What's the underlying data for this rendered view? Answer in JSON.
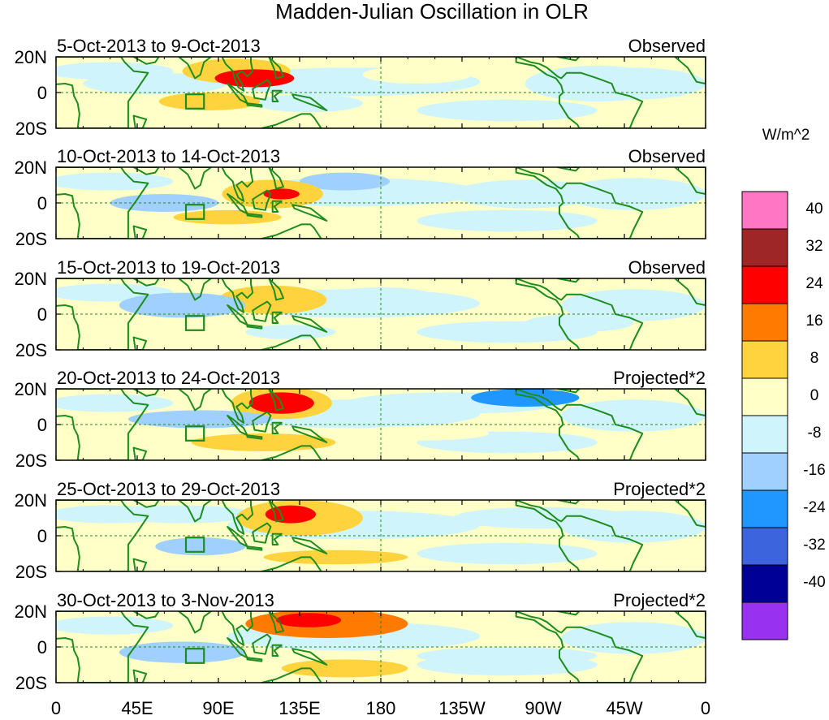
{
  "title": "Madden-Julian Oscillation in OLR",
  "units": "W/m^2",
  "chart_data": {
    "type": "heatmap",
    "title": "Madden-Julian Oscillation in OLR",
    "colorbar_label": "W/m^2",
    "x_ticks": [
      "0",
      "45E",
      "90E",
      "135E",
      "180",
      "135W",
      "90W",
      "45W",
      "0"
    ],
    "x_values_deg_east": [
      0,
      45,
      90,
      135,
      180,
      225,
      270,
      315,
      360
    ],
    "y_ticks": [
      "20N",
      "0",
      "20S"
    ],
    "y_values_deg": [
      20,
      0,
      -20
    ],
    "xlim": [
      0,
      360
    ],
    "ylim": [
      -20,
      20
    ],
    "reference_lines": {
      "equator_lat": 0,
      "dateline_lon": 180
    },
    "colorbar": {
      "levels": [
        "40",
        "32",
        "24",
        "16",
        "8",
        "0",
        "-8",
        "-16",
        "-24",
        "-32",
        "-40"
      ],
      "colors": [
        "#ff77c4",
        "#9e2626",
        "#ff0000",
        "#ff7a00",
        "#ffd33d",
        "#ffffc8",
        "#cff4fb",
        "#a0d0ff",
        "#2096ff",
        "#3c64dc",
        "#000096",
        "#9932f0"
      ]
    },
    "panels": [
      {
        "date_range": "5-Oct-2013 to 9-Oct-2013",
        "label": "Observed",
        "anomalies": [
          {
            "lon": 110,
            "lat": 8,
            "rx": 22,
            "ry": 5,
            "value": 30
          },
          {
            "lon": 100,
            "lat": 12,
            "rx": 30,
            "ry": 7,
            "value": 12
          },
          {
            "lon": 85,
            "lat": -5,
            "rx": 28,
            "ry": 5,
            "value": 10
          },
          {
            "lon": 55,
            "lat": 5,
            "rx": 40,
            "ry": 6,
            "value": -8
          },
          {
            "lon": 140,
            "lat": -6,
            "rx": 30,
            "ry": 5,
            "value": -6
          },
          {
            "lon": 300,
            "lat": 5,
            "rx": 40,
            "ry": 10,
            "value": -6
          },
          {
            "lon": 200,
            "lat": 10,
            "rx": 30,
            "ry": 5,
            "value": 4
          }
        ]
      },
      {
        "date_range": "10-Oct-2013 to 14-Oct-2013",
        "label": "Observed",
        "anomalies": [
          {
            "lon": 120,
            "lat": 5,
            "rx": 28,
            "ry": 8,
            "value": 14
          },
          {
            "lon": 125,
            "lat": 5,
            "rx": 10,
            "ry": 3,
            "value": 26
          },
          {
            "lon": 60,
            "lat": 0,
            "rx": 30,
            "ry": 5,
            "value": -10
          },
          {
            "lon": 160,
            "lat": 12,
            "rx": 25,
            "ry": 5,
            "value": -10
          },
          {
            "lon": 95,
            "lat": -8,
            "rx": 30,
            "ry": 4,
            "value": 10
          },
          {
            "lon": 260,
            "lat": 5,
            "rx": 40,
            "ry": 8,
            "value": -6
          }
        ]
      },
      {
        "date_range": "15-Oct-2013 to 19-Oct-2013",
        "label": "Observed",
        "anomalies": [
          {
            "lon": 120,
            "lat": 8,
            "rx": 30,
            "ry": 8,
            "value": 10
          },
          {
            "lon": 70,
            "lat": 5,
            "rx": 35,
            "ry": 7,
            "value": -10
          },
          {
            "lon": 180,
            "lat": 10,
            "rx": 30,
            "ry": 5,
            "value": -6
          },
          {
            "lon": 130,
            "lat": -10,
            "rx": 25,
            "ry": 4,
            "value": -8
          },
          {
            "lon": 290,
            "lat": -5,
            "rx": 30,
            "ry": 5,
            "value": -8
          }
        ]
      },
      {
        "date_range": "20-Oct-2013 to 24-Oct-2013",
        "label": "Projected*2",
        "anomalies": [
          {
            "lon": 125,
            "lat": 12,
            "rx": 18,
            "ry": 6,
            "value": 26
          },
          {
            "lon": 125,
            "lat": 12,
            "rx": 28,
            "ry": 9,
            "value": 14
          },
          {
            "lon": 115,
            "lat": -10,
            "rx": 40,
            "ry": 5,
            "value": 10
          },
          {
            "lon": 80,
            "lat": 3,
            "rx": 40,
            "ry": 5,
            "value": -14
          },
          {
            "lon": 260,
            "lat": 15,
            "rx": 30,
            "ry": 5,
            "value": -20
          },
          {
            "lon": 220,
            "lat": 12,
            "rx": 60,
            "ry": 6,
            "value": -8
          },
          {
            "lon": 200,
            "lat": -5,
            "rx": 40,
            "ry": 4,
            "value": 4
          }
        ]
      },
      {
        "date_range": "25-Oct-2013 to 29-Oct-2013",
        "label": "Projected*2",
        "anomalies": [
          {
            "lon": 130,
            "lat": 12,
            "rx": 14,
            "ry": 5,
            "value": 28
          },
          {
            "lon": 135,
            "lat": 10,
            "rx": 35,
            "ry": 10,
            "value": 14
          },
          {
            "lon": 80,
            "lat": -6,
            "rx": 25,
            "ry": 5,
            "value": -16
          },
          {
            "lon": 70,
            "lat": 12,
            "rx": 40,
            "ry": 5,
            "value": -8
          },
          {
            "lon": 155,
            "lat": -12,
            "rx": 40,
            "ry": 4,
            "value": 10
          },
          {
            "lon": 270,
            "lat": 10,
            "rx": 50,
            "ry": 6,
            "value": -6
          }
        ]
      },
      {
        "date_range": "30-Oct-2013 to 3-Nov-2013",
        "label": "Projected*2",
        "anomalies": [
          {
            "lon": 140,
            "lat": 15,
            "rx": 18,
            "ry": 4,
            "value": 28
          },
          {
            "lon": 150,
            "lat": 13,
            "rx": 45,
            "ry": 8,
            "value": 16
          },
          {
            "lon": 70,
            "lat": -3,
            "rx": 35,
            "ry": 6,
            "value": -12
          },
          {
            "lon": 160,
            "lat": -12,
            "rx": 35,
            "ry": 5,
            "value": 10
          },
          {
            "lon": 250,
            "lat": -5,
            "rx": 50,
            "ry": 5,
            "value": -6
          },
          {
            "lon": 270,
            "lat": 15,
            "rx": 25,
            "ry": 4,
            "value": 6
          }
        ]
      }
    ]
  }
}
